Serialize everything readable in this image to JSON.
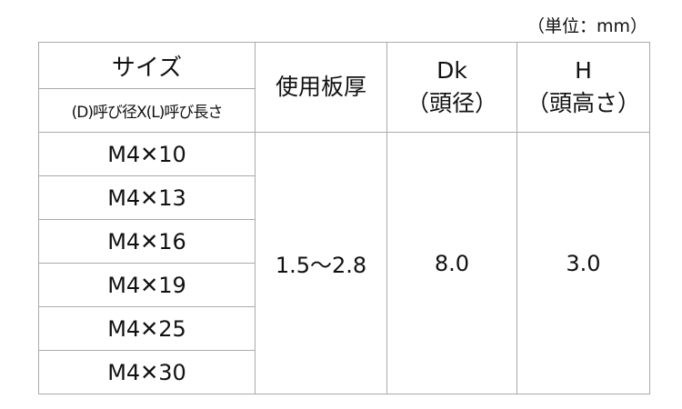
{
  "unit_label": "（単位：mm）",
  "headers": {
    "size": "サイズ",
    "size_sub": "(D)呼び径X(L)呼び長さ",
    "thickness": "使用板厚",
    "dk": "Dk",
    "dk_sub": "（頭径）",
    "h": "H",
    "h_sub": "（頭高さ）"
  },
  "rows": [
    "M4✕10",
    "M4✕13",
    "M4✕16",
    "M4✕19",
    "M4✕25",
    "M4✕30"
  ],
  "values": {
    "thickness": "1.5～2.8",
    "dk": "8.0",
    "h": "3.0"
  }
}
